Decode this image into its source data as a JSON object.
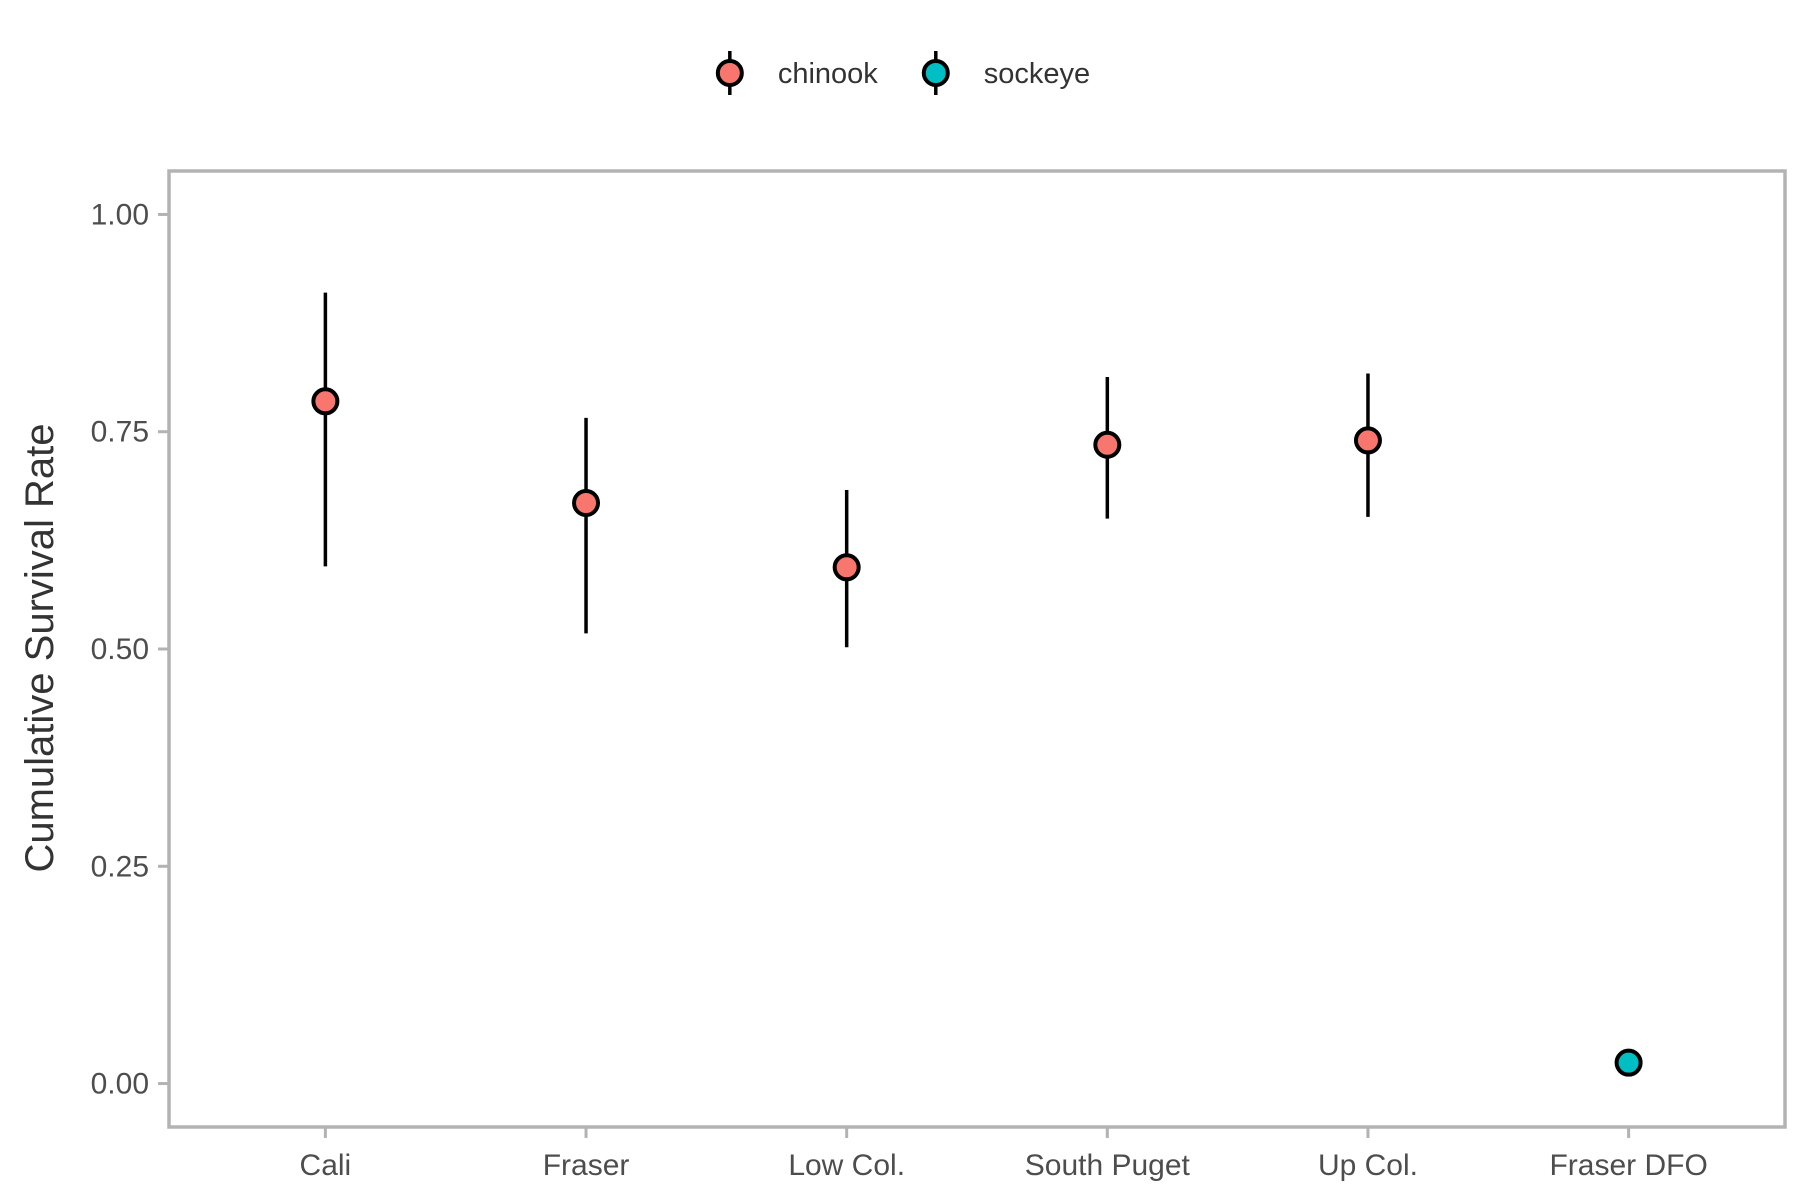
{
  "chart_data": {
    "type": "scatter",
    "title": "",
    "xlabel": "",
    "ylabel": "Cumulative Survival Rate",
    "categories": [
      "Cali",
      "Fraser",
      "Low Col.",
      "South Puget",
      "Up Col.",
      "Fraser DFO"
    ],
    "ylim": [
      -0.05,
      1.05
    ],
    "yticks": [
      0.0,
      0.25,
      0.5,
      0.75,
      1.0
    ],
    "ytick_labels": [
      "0.00",
      "0.25",
      "0.50",
      "0.75",
      "1.00"
    ],
    "grid": false,
    "legend_position": "top",
    "series": [
      {
        "name": "chinook",
        "color": "#F8766D",
        "points": [
          {
            "category": "Cali",
            "y": 0.785,
            "lower": 0.595,
            "upper": 0.91
          },
          {
            "category": "Fraser",
            "y": 0.668,
            "lower": 0.518,
            "upper": 0.766
          },
          {
            "category": "Low Col.",
            "y": 0.594,
            "lower": 0.502,
            "upper": 0.683
          },
          {
            "category": "South Puget",
            "y": 0.735,
            "lower": 0.65,
            "upper": 0.813
          },
          {
            "category": "Up Col.",
            "y": 0.74,
            "lower": 0.652,
            "upper": 0.817
          }
        ]
      },
      {
        "name": "sockeye",
        "color": "#00BFC4",
        "points": [
          {
            "category": "Fraser DFO",
            "y": 0.024,
            "lower": 0.024,
            "upper": 0.024
          }
        ]
      }
    ]
  }
}
